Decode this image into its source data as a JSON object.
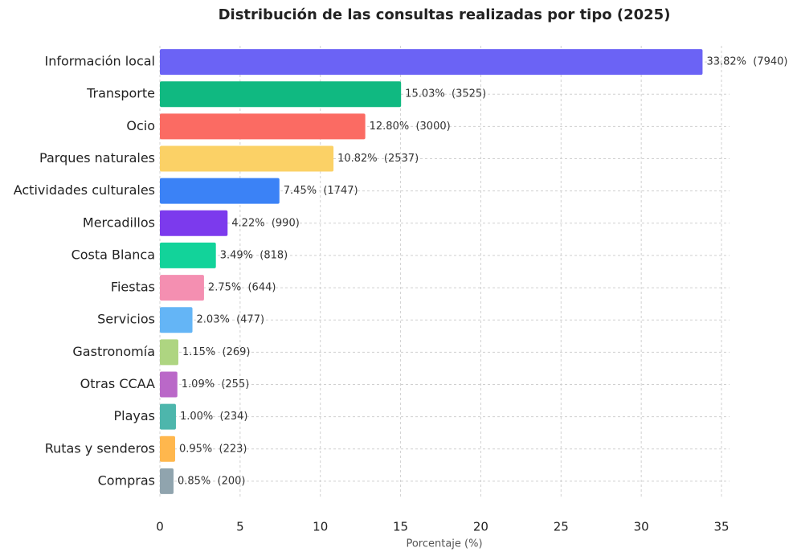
{
  "chart_data": {
    "type": "bar",
    "orientation": "horizontal",
    "title": "Distribución de las consultas realizadas por tipo (2025)",
    "xlabel": "Porcentaje (%)",
    "categories": [
      "Información local",
      "Transporte",
      "Ocio",
      "Parques naturales",
      "Actividades culturales",
      "Mercadillos",
      "Costa Blanca",
      "Fiestas",
      "Servicios",
      "Gastronomía",
      "Otras CCAA",
      "Playas",
      "Rutas y senderos",
      "Compras"
    ],
    "values": [
      33.82,
      15.03,
      12.8,
      10.82,
      7.45,
      4.22,
      3.49,
      2.75,
      2.03,
      1.15,
      1.09,
      1.0,
      0.95,
      0.85
    ],
    "value_labels": [
      "33.82%  (7940)",
      "15.03%  (3525)",
      "12.80%  (3000)",
      "10.82%  (2537)",
      "7.45%  (1747)",
      "4.22%  (990)",
      "3.49%  (818)",
      "2.75%  (644)",
      "2.03%  (477)",
      "1.15%  (269)",
      "1.09%  (255)",
      "1.00%  (234)",
      "0.95%  (223)",
      "0.85%  (200)"
    ],
    "colors": [
      "#6b63f5",
      "#10b981",
      "#fb6b63",
      "#fbd166",
      "#3b82f6",
      "#7c3aed",
      "#12d39a",
      "#f48fb1",
      "#64b5f6",
      "#aed581",
      "#ba68c8",
      "#4db6ac",
      "#ffb74d",
      "#90a4ae"
    ],
    "xlim": [
      0,
      35.5
    ],
    "xticks": [
      0,
      5,
      10,
      15,
      20,
      25,
      30,
      35
    ],
    "grid": true
  }
}
